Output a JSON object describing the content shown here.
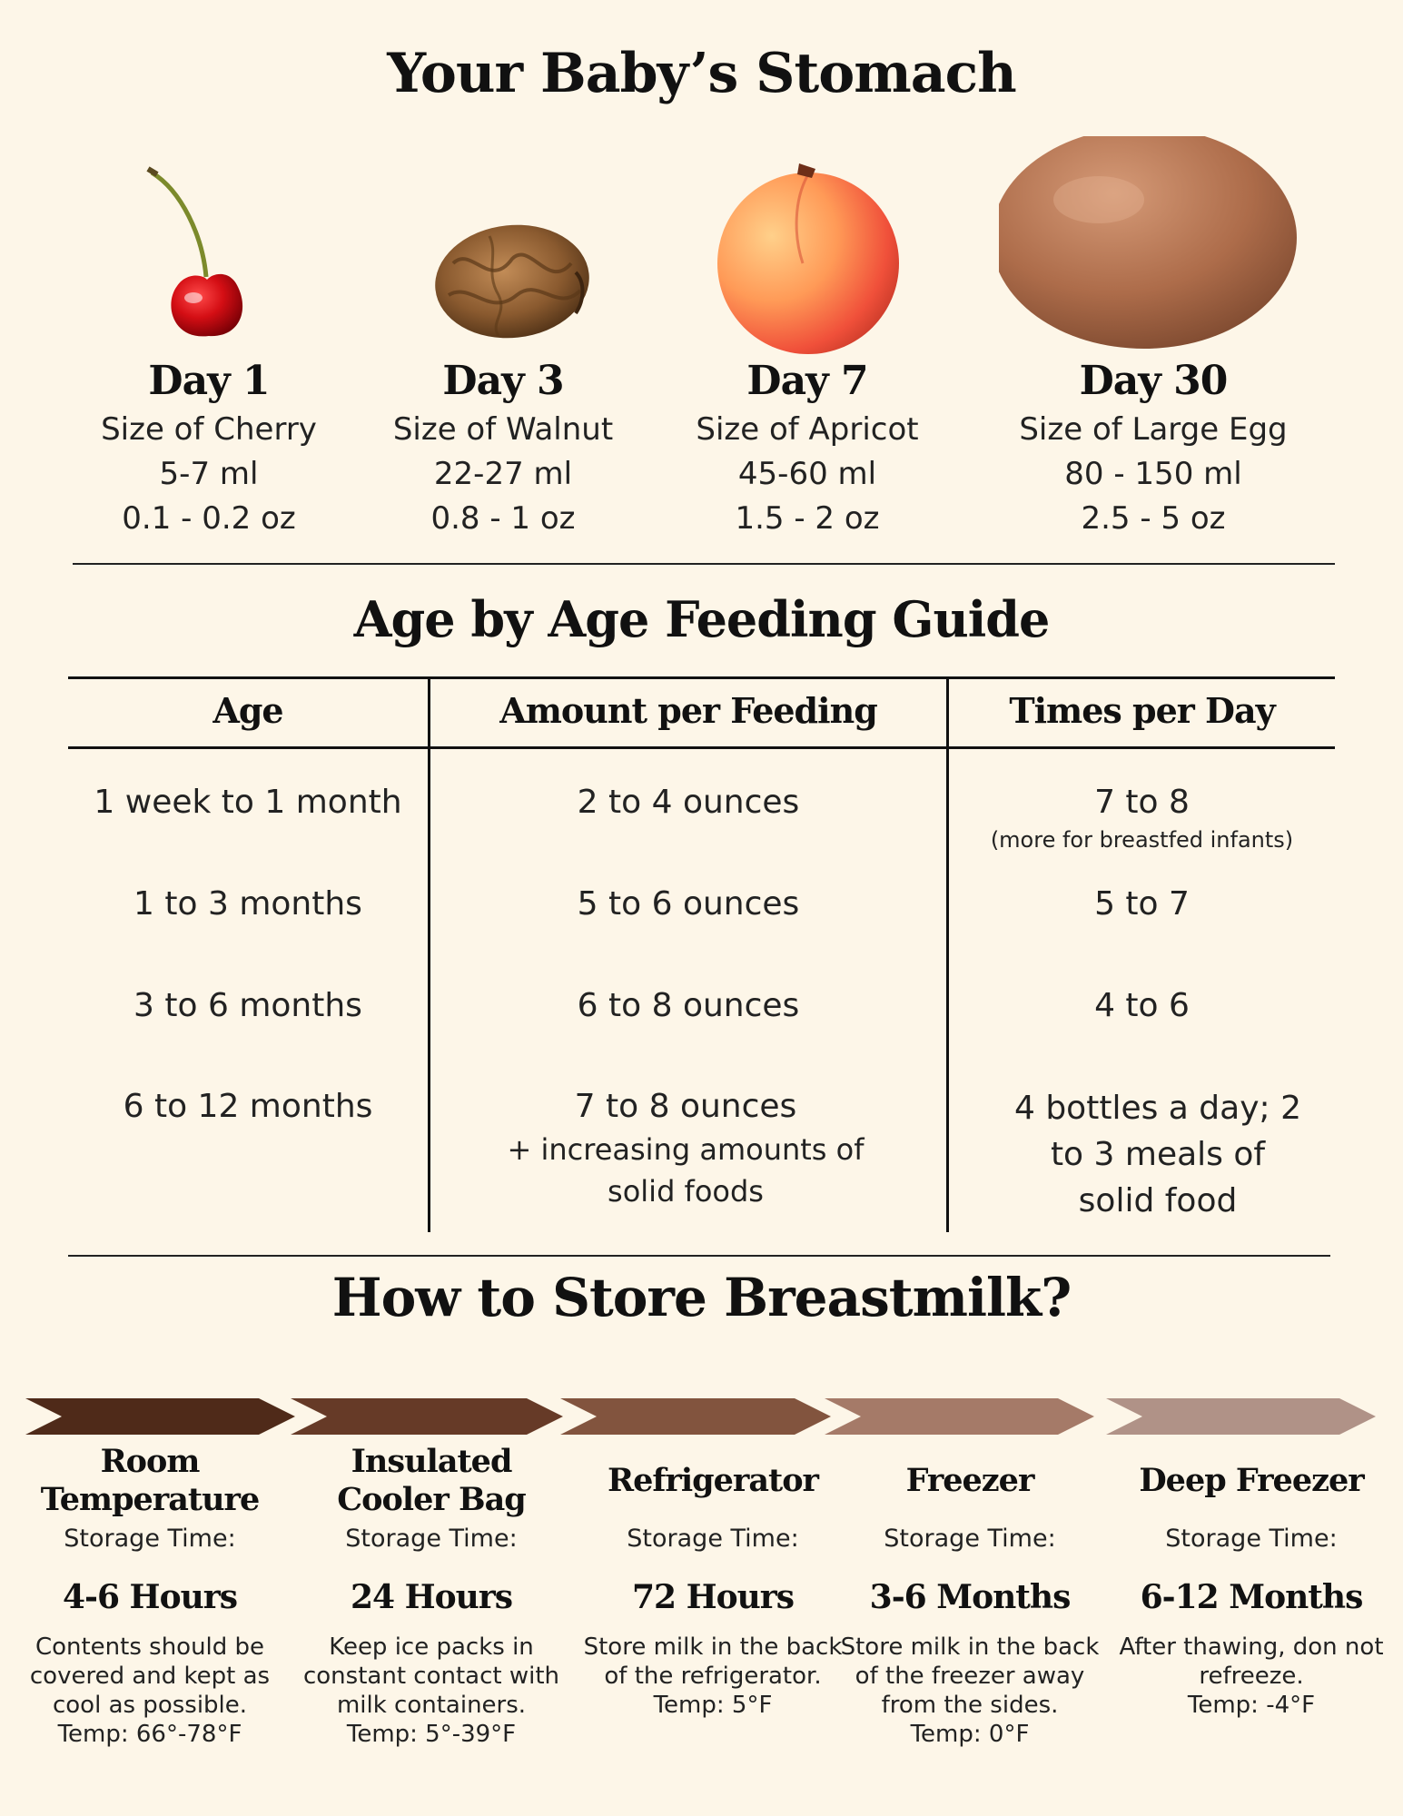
{
  "stomach": {
    "title": "Your Baby’s Stomach",
    "items": [
      {
        "icon": "cherry-icon",
        "day": "Day 1",
        "size": "Size of Cherry",
        "ml": "5-7 ml",
        "oz": "0.1 - 0.2 oz"
      },
      {
        "icon": "walnut-icon",
        "day": "Day 3",
        "size": "Size of Walnut",
        "ml": "22-27 ml",
        "oz": "0.8 - 1 oz"
      },
      {
        "icon": "apricot-icon",
        "day": "Day 7",
        "size": "Size of Apricot",
        "ml": "45-60 ml",
        "oz": "1.5 - 2 oz"
      },
      {
        "icon": "egg-icon",
        "day": "Day 30",
        "size": "Size of Large Egg",
        "ml": "80 - 150 ml",
        "oz": "2.5 - 5 oz"
      }
    ]
  },
  "feeding": {
    "title": "Age by Age Feeding Guide",
    "headers": [
      "Age",
      "Amount per Feeding",
      "Times per Day"
    ],
    "rows": [
      {
        "age": "1 week to 1 month",
        "amount": "2 to 4  ounces",
        "amount_note": "",
        "times": "7 to 8",
        "times_note": "(more for breastfed infants)"
      },
      {
        "age": "1 to 3 months",
        "amount": "5 to 6 ounces",
        "amount_note": "",
        "times": "5 to 7",
        "times_note": ""
      },
      {
        "age": "3 to 6 months",
        "amount": "6 to 8 ounces",
        "amount_note": "",
        "times": "4 to 6",
        "times_note": ""
      },
      {
        "age": "6 to 12 months",
        "amount": "7 to 8 ounces",
        "amount_note": "+ increasing amounts of solid foods",
        "times": "4 bottles a day; 2 to 3 meals of solid food",
        "times_note": ""
      }
    ]
  },
  "storage": {
    "title": "How to Store Breastmilk?",
    "arrow_colors": [
      "#4f2a19",
      "#663a27",
      "#82543e",
      "#a57a68",
      "#b09287"
    ],
    "items": [
      {
        "name": "Room Temperature",
        "label": "Storage Time:",
        "time": "4-6 Hours",
        "desc": "Contents should be covered and kept as cool as possible.",
        "temp": "Temp: 66°-78°F"
      },
      {
        "name": "Insulated Cooler Bag",
        "label": "Storage Time:",
        "time": "24 Hours",
        "desc": "Keep ice packs in constant contact with milk containers.",
        "temp": "Temp: 5°-39°F"
      },
      {
        "name": "Refrigerator",
        "label": "Storage Time:",
        "time": "72 Hours",
        "desc": "Store milk in the back of the refrigerator.",
        "temp": "Temp: 5°F"
      },
      {
        "name": "Freezer",
        "label": "Storage Time:",
        "time": "3-6 Months",
        "desc": "Store milk in the back of the freezer away from the sides.",
        "temp": "Temp: 0°F"
      },
      {
        "name": "Deep Freezer",
        "label": "Storage Time:",
        "time": "6-12 Months",
        "desc": "After thawing, don not refreeze.",
        "temp": "Temp: -4°F"
      }
    ]
  }
}
